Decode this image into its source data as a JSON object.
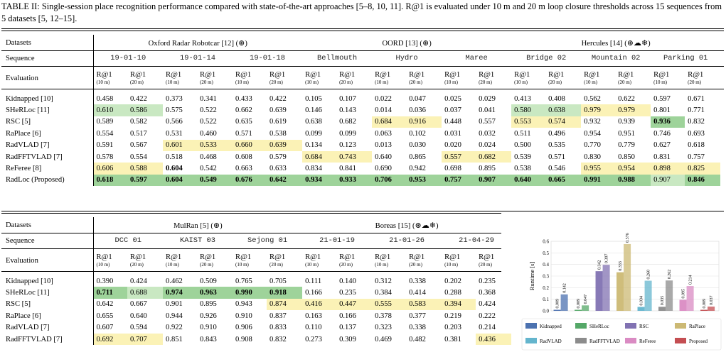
{
  "caption": "TABLE II: Single-session place recognition performance compared with state-of-the-art approaches [5–8, 10, 11]. R@1 is evaluated under 10 m and 20 m loop closure thresholds across 15 sequences from 5 datasets [5, 12–15].",
  "labels": {
    "datasets": "Datasets",
    "sequence": "Sequence",
    "evaluation": "Evaluation",
    "r1": "R@1",
    "th10": "(10 m)",
    "th20": "(20 m)"
  },
  "icon_names": [
    "radar-icon",
    "cloud-icon",
    "snow-icon"
  ],
  "table1": {
    "groups": [
      {
        "name": "Oxford Radar Robotcar [12] (",
        "icons": "⊛",
        "suffix": ")"
      },
      {
        "name": "OORD [13] (",
        "icons": "⊛",
        "suffix": ")"
      },
      {
        "name": "Hercules [14] (",
        "icons": "⊛☁❄",
        "suffix": ")"
      }
    ],
    "sequences": [
      "19-01-10",
      "19-01-14",
      "19-01-18",
      "Bellmouth",
      "Hydro",
      "Maree",
      "Bridge 02",
      "Mountain 02",
      "Parking 01"
    ],
    "rows": [
      {
        "method": "Kidnapped [10]",
        "values": [
          "0.458",
          "0.422",
          "0.373",
          "0.341",
          "0.433",
          "0.422",
          "0.105",
          "0.107",
          "0.022",
          "0.047",
          "0.025",
          "0.029",
          "0.413",
          "0.408",
          "0.562",
          "0.622",
          "0.597",
          "0.671"
        ]
      },
      {
        "method": "SHeRLoc [11]",
        "values": [
          "0.610",
          "0.586",
          "0.575",
          "0.522",
          "0.662",
          "0.639",
          "0.146",
          "0.143",
          "0.014",
          "0.036",
          "0.037",
          "0.041",
          "0.580",
          "0.638",
          "0.979",
          "0.979",
          "0.801",
          "0.771"
        ]
      },
      {
        "method": "RSC [5]",
        "values": [
          "0.589",
          "0.582",
          "0.566",
          "0.522",
          "0.635",
          "0.619",
          "0.638",
          "0.682",
          "0.684",
          "0.916",
          "0.448",
          "0.557",
          "0.553",
          "0.574",
          "0.932",
          "0.939",
          "0.936",
          "0.832"
        ]
      },
      {
        "method": "RaPlace [6]",
        "values": [
          "0.554",
          "0.517",
          "0.531",
          "0.460",
          "0.571",
          "0.538",
          "0.099",
          "0.099",
          "0.063",
          "0.102",
          "0.031",
          "0.032",
          "0.511",
          "0.496",
          "0.954",
          "0.951",
          "0.746",
          "0.693"
        ]
      },
      {
        "method": "RadVLAD [7]",
        "values": [
          "0.591",
          "0.567",
          "0.601",
          "0.533",
          "0.660",
          "0.639",
          "0.134",
          "0.123",
          "0.013",
          "0.030",
          "0.020",
          "0.024",
          "0.500",
          "0.535",
          "0.770",
          "0.779",
          "0.627",
          "0.618"
        ]
      },
      {
        "method": "RadFFTVLAD [7]",
        "values": [
          "0.578",
          "0.554",
          "0.518",
          "0.468",
          "0.608",
          "0.579",
          "0.684",
          "0.743",
          "0.640",
          "0.865",
          "0.557",
          "0.682",
          "0.539",
          "0.571",
          "0.830",
          "0.850",
          "0.831",
          "0.757"
        ]
      },
      {
        "method": "ReFeree [8]",
        "values": [
          "0.606",
          "0.588",
          "0.604",
          "0.542",
          "0.663",
          "0.633",
          "0.834",
          "0.841",
          "0.690",
          "0.942",
          "0.698",
          "0.895",
          "0.538",
          "0.546",
          "0.955",
          "0.954",
          "0.898",
          "0.825"
        ]
      },
      {
        "method": "RadLoc (Proposed)",
        "values": [
          "0.618",
          "0.597",
          "0.604",
          "0.549",
          "0.676",
          "0.642",
          "0.934",
          "0.933",
          "0.706",
          "0.953",
          "0.757",
          "0.907",
          "0.640",
          "0.665",
          "0.991",
          "0.988",
          "0.907",
          "0.846"
        ]
      }
    ]
  },
  "table2": {
    "groups": [
      {
        "name": "MulRan [5] (",
        "icons": "⊛",
        "suffix": ")"
      },
      {
        "name": "Boreas [15] (",
        "icons": "⊛☁❄",
        "suffix": ")"
      }
    ],
    "sequences": [
      "DCC 01",
      "KAIST 03",
      "Sejong 01",
      "21-01-19",
      "21-01-26",
      "21-04-29"
    ],
    "rows": [
      {
        "method": "Kidnapped [10]",
        "values": [
          "0.390",
          "0.424",
          "0.462",
          "0.509",
          "0.765",
          "0.705",
          "0.111",
          "0.140",
          "0.312",
          "0.338",
          "0.202",
          "0.235"
        ]
      },
      {
        "method": "SHeRLoc [11]",
        "values": [
          "0.711",
          "0.688",
          "0.974",
          "0.963",
          "0.990",
          "0.918",
          "0.166",
          "0.235",
          "0.384",
          "0.414",
          "0.288",
          "0.368"
        ]
      },
      {
        "method": "RSC [5]",
        "values": [
          "0.642",
          "0.667",
          "0.901",
          "0.895",
          "0.943",
          "0.874",
          "0.416",
          "0.447",
          "0.555",
          "0.583",
          "0.394",
          "0.424"
        ]
      },
      {
        "method": "RaPlace [6]",
        "values": [
          "0.655",
          "0.640",
          "0.944",
          "0.926",
          "0.910",
          "0.837",
          "0.163",
          "0.166",
          "0.378",
          "0.377",
          "0.219",
          "0.222"
        ]
      },
      {
        "method": "RadVLAD [7]",
        "values": [
          "0.607",
          "0.594",
          "0.922",
          "0.910",
          "0.906",
          "0.833",
          "0.110",
          "0.137",
          "0.323",
          "0.338",
          "0.203",
          "0.214"
        ]
      },
      {
        "method": "RadFFTVLAD [7]",
        "values": [
          "0.692",
          "0.707",
          "0.851",
          "0.843",
          "0.908",
          "0.832",
          "0.273",
          "0.309",
          "0.469",
          "0.482",
          "0.381",
          "0.436"
        ]
      }
    ]
  },
  "chart_data": {
    "type": "bar",
    "ylabel": "Runtime [s]",
    "ylim": [
      0,
      0.6
    ],
    "yticks": [
      0.0,
      0.1,
      0.2,
      0.3,
      0.4,
      0.5,
      0.6
    ],
    "grid": true,
    "legend": "bottom",
    "series": [
      {
        "name": "Kidnapped",
        "color": "#4c72b0",
        "values": [
          0.009,
          0.142
        ]
      },
      {
        "name": "SHeRLoc",
        "color": "#55a868",
        "values": [
          0.009,
          0.047
        ]
      },
      {
        "name": "RSC",
        "color": "#8172b2",
        "values": [
          0.342,
          0.397
        ]
      },
      {
        "name": "RaPlace",
        "color": "#ccb974",
        "values": [
          0.333,
          0.576
        ]
      },
      {
        "name": "RadVLAD",
        "color": "#64b5cd",
        "values": [
          0.034,
          0.26
        ]
      },
      {
        "name": "RadFFTVLAD",
        "color": "#8c8c8c",
        "values": [
          0.035,
          0.262
        ]
      },
      {
        "name": "ReFeree",
        "color": "#da8bc3",
        "values": [
          0.095,
          0.214
        ]
      },
      {
        "name": "Proposed",
        "color": "#c44e52",
        "values": [
          0.009,
          0.037
        ]
      }
    ]
  }
}
